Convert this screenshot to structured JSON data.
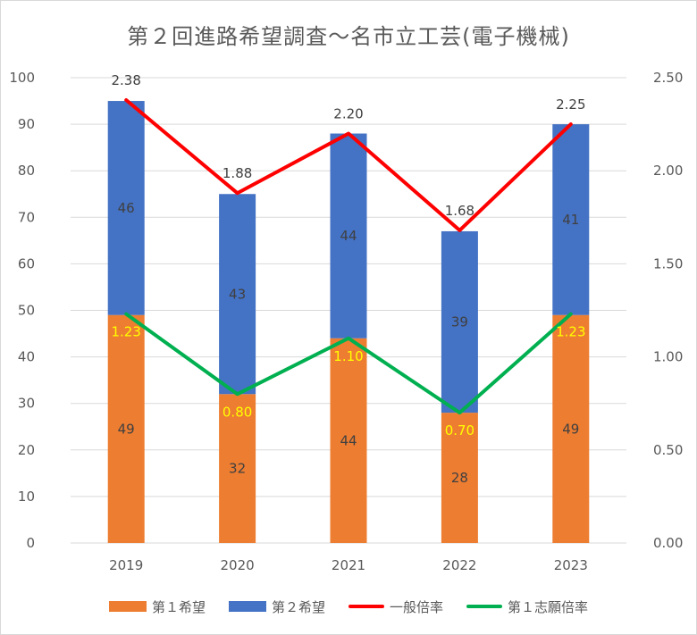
{
  "chart_data": {
    "title": "第２回進路希望調査～名市立工芸(電子機械)",
    "type": "bar",
    "stacked": true,
    "categories": [
      "2019",
      "2020",
      "2021",
      "2022",
      "2023"
    ],
    "series": [
      {
        "name": "第１希望",
        "kind": "bar",
        "axis": "left",
        "color": "#ed7d31",
        "values": [
          49,
          32,
          44,
          28,
          49
        ]
      },
      {
        "name": "第２希望",
        "kind": "bar",
        "axis": "left",
        "color": "#4472c4",
        "values": [
          46,
          43,
          44,
          39,
          41
        ]
      },
      {
        "name": "一般倍率",
        "kind": "line",
        "axis": "right",
        "color": "#ff0000",
        "values": [
          2.38,
          1.88,
          2.2,
          1.68,
          2.25
        ]
      },
      {
        "name": "第１志願倍率",
        "kind": "line",
        "axis": "right",
        "color": "#00b050",
        "values": [
          1.23,
          0.8,
          1.1,
          0.7,
          1.23
        ]
      }
    ],
    "bar_labels": {
      "first": [
        "49",
        "32",
        "44",
        "28",
        "49"
      ],
      "second": [
        "46",
        "43",
        "44",
        "39",
        "41"
      ]
    },
    "line_labels": {
      "general": [
        "2.38",
        "1.88",
        "2.20",
        "1.68",
        "2.25"
      ],
      "first_choice": [
        "1.23",
        "0.80",
        "1.10",
        "0.70",
        "1.23"
      ]
    },
    "ylim_left": [
      0,
      100
    ],
    "ylim_right": [
      0,
      2.5
    ],
    "yticks_left": [
      "0",
      "10",
      "20",
      "30",
      "40",
      "50",
      "60",
      "70",
      "80",
      "90",
      "100"
    ],
    "yticks_right": [
      "0.00",
      "0.50",
      "1.00",
      "1.50",
      "2.00",
      "2.50"
    ],
    "grid": true,
    "legend_position": "bottom"
  }
}
